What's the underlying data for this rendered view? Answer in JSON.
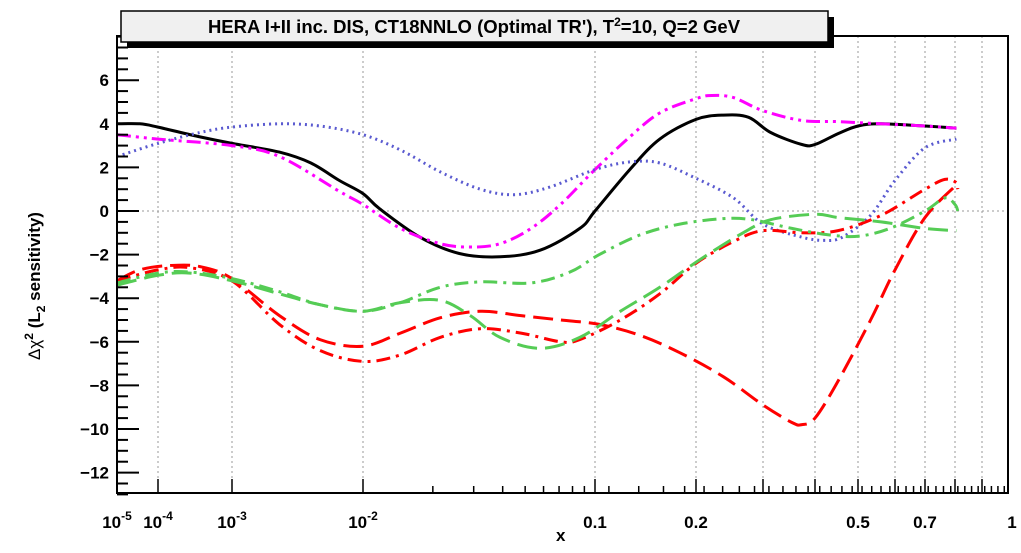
{
  "chart_data": {
    "type": "line",
    "title": "HERA I+II inc. DIS, CT18NNLO (Optimal TR'), T",
    "title_sup": "2",
    "title_tail": "=10, Q=2 GeV",
    "xlabel": "x",
    "ylabel_prefix": "Δχ",
    "ylabel_sup": "2",
    "ylabel_mid": " (L",
    "ylabel_sub": "2",
    "ylabel_tail": " sensitivity)",
    "xscale": "log-like (compressed)",
    "xlim": [
      1e-05,
      1
    ],
    "ylim": [
      -13,
      8
    ],
    "grid": true,
    "x_tick_labels": [
      {
        "value": 1e-05,
        "base": "10",
        "exp": "-5"
      },
      {
        "value": 0.0001,
        "base": "10",
        "exp": "-4"
      },
      {
        "value": 0.001,
        "base": "10",
        "exp": "-3"
      },
      {
        "value": 0.01,
        "base": "10",
        "exp": "-2"
      },
      {
        "value": 0.1,
        "base": "0.1",
        "exp": ""
      },
      {
        "value": 0.2,
        "base": "0.2",
        "exp": ""
      },
      {
        "value": 0.5,
        "base": "0.5",
        "exp": ""
      },
      {
        "value": 0.7,
        "base": "0.7",
        "exp": ""
      },
      {
        "value": 1,
        "base": "1",
        "exp": ""
      }
    ],
    "x_gridlines": [
      0.0001,
      0.001,
      0.01,
      0.1,
      0.2,
      0.3,
      0.4,
      0.5,
      0.6,
      0.7,
      0.8,
      0.9
    ],
    "y_ticks": [
      6,
      4,
      2,
      0,
      -2,
      -4,
      -6,
      -8,
      -10,
      -12
    ],
    "y_tick_labels": [
      "6",
      "4",
      "2",
      "0",
      "−2",
      "−4",
      "−6",
      "−8",
      "−10",
      "−12"
    ],
    "series": [
      {
        "name": "black-solid",
        "color": "#000000",
        "dash": "solid",
        "points": [
          [
            1e-05,
            4.0
          ],
          [
            3.6e-05,
            4.0
          ],
          [
            0.0001,
            3.85
          ],
          [
            0.00037,
            3.4
          ],
          [
            0.001,
            3.1
          ],
          [
            0.0023,
            2.7
          ],
          [
            0.004,
            2.2
          ],
          [
            0.0066,
            1.4
          ],
          [
            0.01,
            0.8
          ],
          [
            0.0118,
            0.1
          ],
          [
            0.0176,
            -1.2
          ],
          [
            0.026,
            -1.95
          ],
          [
            0.039,
            -2.1
          ],
          [
            0.058,
            -1.8
          ],
          [
            0.086,
            -0.8
          ],
          [
            0.1,
            0.0
          ],
          [
            0.127,
            1.9
          ],
          [
            0.156,
            3.3
          ],
          [
            0.2,
            4.2
          ],
          [
            0.236,
            4.4
          ],
          [
            0.275,
            4.3
          ],
          [
            0.313,
            3.6
          ],
          [
            0.372,
            3.05
          ],
          [
            0.4,
            3.05
          ],
          [
            0.451,
            3.55
          ],
          [
            0.5,
            3.9
          ],
          [
            0.56,
            4.0
          ],
          [
            0.7,
            3.9
          ],
          [
            0.805,
            3.8
          ]
        ]
      },
      {
        "name": "magenta-dash-dot-dot",
        "color": "#ff00ff",
        "dash": "dashdotdot",
        "points": [
          [
            1e-05,
            3.5
          ],
          [
            0.0001,
            3.3
          ],
          [
            0.001,
            3.0
          ],
          [
            0.0023,
            2.5
          ],
          [
            0.0066,
            0.9
          ],
          [
            0.01,
            0.3
          ],
          [
            0.0145,
            -0.8
          ],
          [
            0.0215,
            -1.5
          ],
          [
            0.029,
            -1.65
          ],
          [
            0.039,
            -1.5
          ],
          [
            0.053,
            -0.8
          ],
          [
            0.071,
            0.3
          ],
          [
            0.1,
            1.9
          ],
          [
            0.127,
            3.4
          ],
          [
            0.156,
            4.5
          ],
          [
            0.2,
            5.15
          ],
          [
            0.22,
            5.3
          ],
          [
            0.251,
            5.2
          ],
          [
            0.3,
            4.6
          ],
          [
            0.372,
            4.15
          ],
          [
            0.451,
            4.1
          ],
          [
            0.56,
            4.0
          ],
          [
            0.7,
            3.9
          ],
          [
            0.805,
            3.8
          ]
        ]
      },
      {
        "name": "blue-dotted",
        "color": "#5a5ad0",
        "dash": "dotted",
        "points": [
          [
            1e-05,
            2.5
          ],
          [
            0.0001,
            3.1
          ],
          [
            0.00037,
            3.6
          ],
          [
            0.001,
            3.85
          ],
          [
            0.0023,
            4.0
          ],
          [
            0.0047,
            3.9
          ],
          [
            0.01,
            3.5
          ],
          [
            0.0145,
            2.8
          ],
          [
            0.0215,
            1.8
          ],
          [
            0.032,
            1.0
          ],
          [
            0.045,
            0.75
          ],
          [
            0.064,
            1.1
          ],
          [
            0.1,
            1.9
          ],
          [
            0.127,
            2.25
          ],
          [
            0.156,
            2.2
          ],
          [
            0.2,
            1.5
          ],
          [
            0.251,
            0.6
          ],
          [
            0.3,
            -0.6
          ],
          [
            0.372,
            -1.2
          ],
          [
            0.42,
            -1.35
          ],
          [
            0.461,
            -1.2
          ],
          [
            0.532,
            -0.2
          ],
          [
            0.6,
            1.4
          ],
          [
            0.7,
            2.9
          ],
          [
            0.805,
            3.3
          ]
        ]
      },
      {
        "name": "red-long-dashed",
        "color": "#ff0000",
        "dash": "longdash",
        "points": [
          [
            1e-05,
            -3.2
          ],
          [
            3.6e-05,
            -2.7
          ],
          [
            0.000145,
            -2.5
          ],
          [
            0.00037,
            -2.55
          ],
          [
            0.001,
            -3.1
          ],
          [
            0.0023,
            -4.8
          ],
          [
            0.0047,
            -5.9
          ],
          [
            0.01,
            -6.2
          ],
          [
            0.0145,
            -5.6
          ],
          [
            0.0215,
            -4.9
          ],
          [
            0.032,
            -4.6
          ],
          [
            0.048,
            -4.8
          ],
          [
            0.071,
            -5.0
          ],
          [
            0.103,
            -5.2
          ],
          [
            0.136,
            -5.7
          ],
          [
            0.179,
            -6.5
          ],
          [
            0.236,
            -7.6
          ],
          [
            0.3,
            -8.9
          ],
          [
            0.352,
            -9.7
          ],
          [
            0.372,
            -9.8
          ],
          [
            0.4,
            -9.5
          ],
          [
            0.451,
            -7.8
          ],
          [
            0.532,
            -5.0
          ],
          [
            0.6,
            -2.7
          ],
          [
            0.7,
            -0.3
          ],
          [
            0.805,
            1.2
          ]
        ]
      },
      {
        "name": "red-dash-dot",
        "color": "#ff0000",
        "dash": "dashdot",
        "points": [
          [
            1e-05,
            -3.2
          ],
          [
            0.0001,
            -2.7
          ],
          [
            0.00027,
            -2.6
          ],
          [
            0.001,
            -3.2
          ],
          [
            0.0023,
            -5.2
          ],
          [
            0.0047,
            -6.4
          ],
          [
            0.01,
            -6.9
          ],
          [
            0.0145,
            -6.6
          ],
          [
            0.0215,
            -5.8
          ],
          [
            0.032,
            -5.4
          ],
          [
            0.048,
            -5.6
          ],
          [
            0.071,
            -6.0
          ],
          [
            0.086,
            -5.9
          ],
          [
            0.119,
            -5.0
          ],
          [
            0.156,
            -3.8
          ],
          [
            0.2,
            -2.4
          ],
          [
            0.251,
            -1.4
          ],
          [
            0.3,
            -0.9
          ],
          [
            0.372,
            -1.0
          ],
          [
            0.451,
            -0.9
          ],
          [
            0.56,
            -0.2
          ],
          [
            0.7,
            1.0
          ],
          [
            0.765,
            1.45
          ],
          [
            0.805,
            1.3
          ],
          [
            0.81,
            1.0
          ]
        ]
      },
      {
        "name": "green-long-dashed",
        "color": "#55cc55",
        "dash": "longdash",
        "points": [
          [
            1e-05,
            -3.4
          ],
          [
            0.0001,
            -2.95
          ],
          [
            0.00027,
            -2.85
          ],
          [
            0.001,
            -3.2
          ],
          [
            0.0023,
            -3.8
          ],
          [
            0.0047,
            -4.3
          ],
          [
            0.01,
            -4.6
          ],
          [
            0.0145,
            -4.2
          ],
          [
            0.0215,
            -4.1
          ],
          [
            0.029,
            -4.8
          ],
          [
            0.039,
            -5.8
          ],
          [
            0.058,
            -6.3
          ],
          [
            0.086,
            -5.8
          ],
          [
            0.119,
            -4.6
          ],
          [
            0.156,
            -3.5
          ],
          [
            0.206,
            -2.2
          ],
          [
            0.266,
            -1.0
          ],
          [
            0.313,
            -0.4
          ],
          [
            0.4,
            -0.15
          ],
          [
            0.451,
            -0.3
          ],
          [
            0.56,
            -0.5
          ],
          [
            0.7,
            -0.8
          ],
          [
            0.805,
            -0.9
          ]
        ]
      },
      {
        "name": "green-dash-dot",
        "color": "#55cc55",
        "dash": "dashdot",
        "points": [
          [
            1e-05,
            -3.3
          ],
          [
            0.0001,
            -2.85
          ],
          [
            0.00027,
            -2.8
          ],
          [
            0.001,
            -3.1
          ],
          [
            0.0023,
            -3.7
          ],
          [
            0.0047,
            -4.3
          ],
          [
            0.01,
            -4.6
          ],
          [
            0.0145,
            -4.2
          ],
          [
            0.0215,
            -3.5
          ],
          [
            0.032,
            -3.25
          ],
          [
            0.053,
            -3.3
          ],
          [
            0.078,
            -2.8
          ],
          [
            0.103,
            -2.0
          ],
          [
            0.136,
            -1.1
          ],
          [
            0.179,
            -0.6
          ],
          [
            0.236,
            -0.35
          ],
          [
            0.281,
            -0.4
          ],
          [
            0.352,
            -0.8
          ],
          [
            0.432,
            -1.1
          ],
          [
            0.503,
            -1.15
          ],
          [
            0.585,
            -0.8
          ],
          [
            0.7,
            0.0
          ],
          [
            0.765,
            0.6
          ],
          [
            0.8,
            0.3
          ],
          [
            0.81,
            0.0
          ]
        ]
      }
    ]
  }
}
